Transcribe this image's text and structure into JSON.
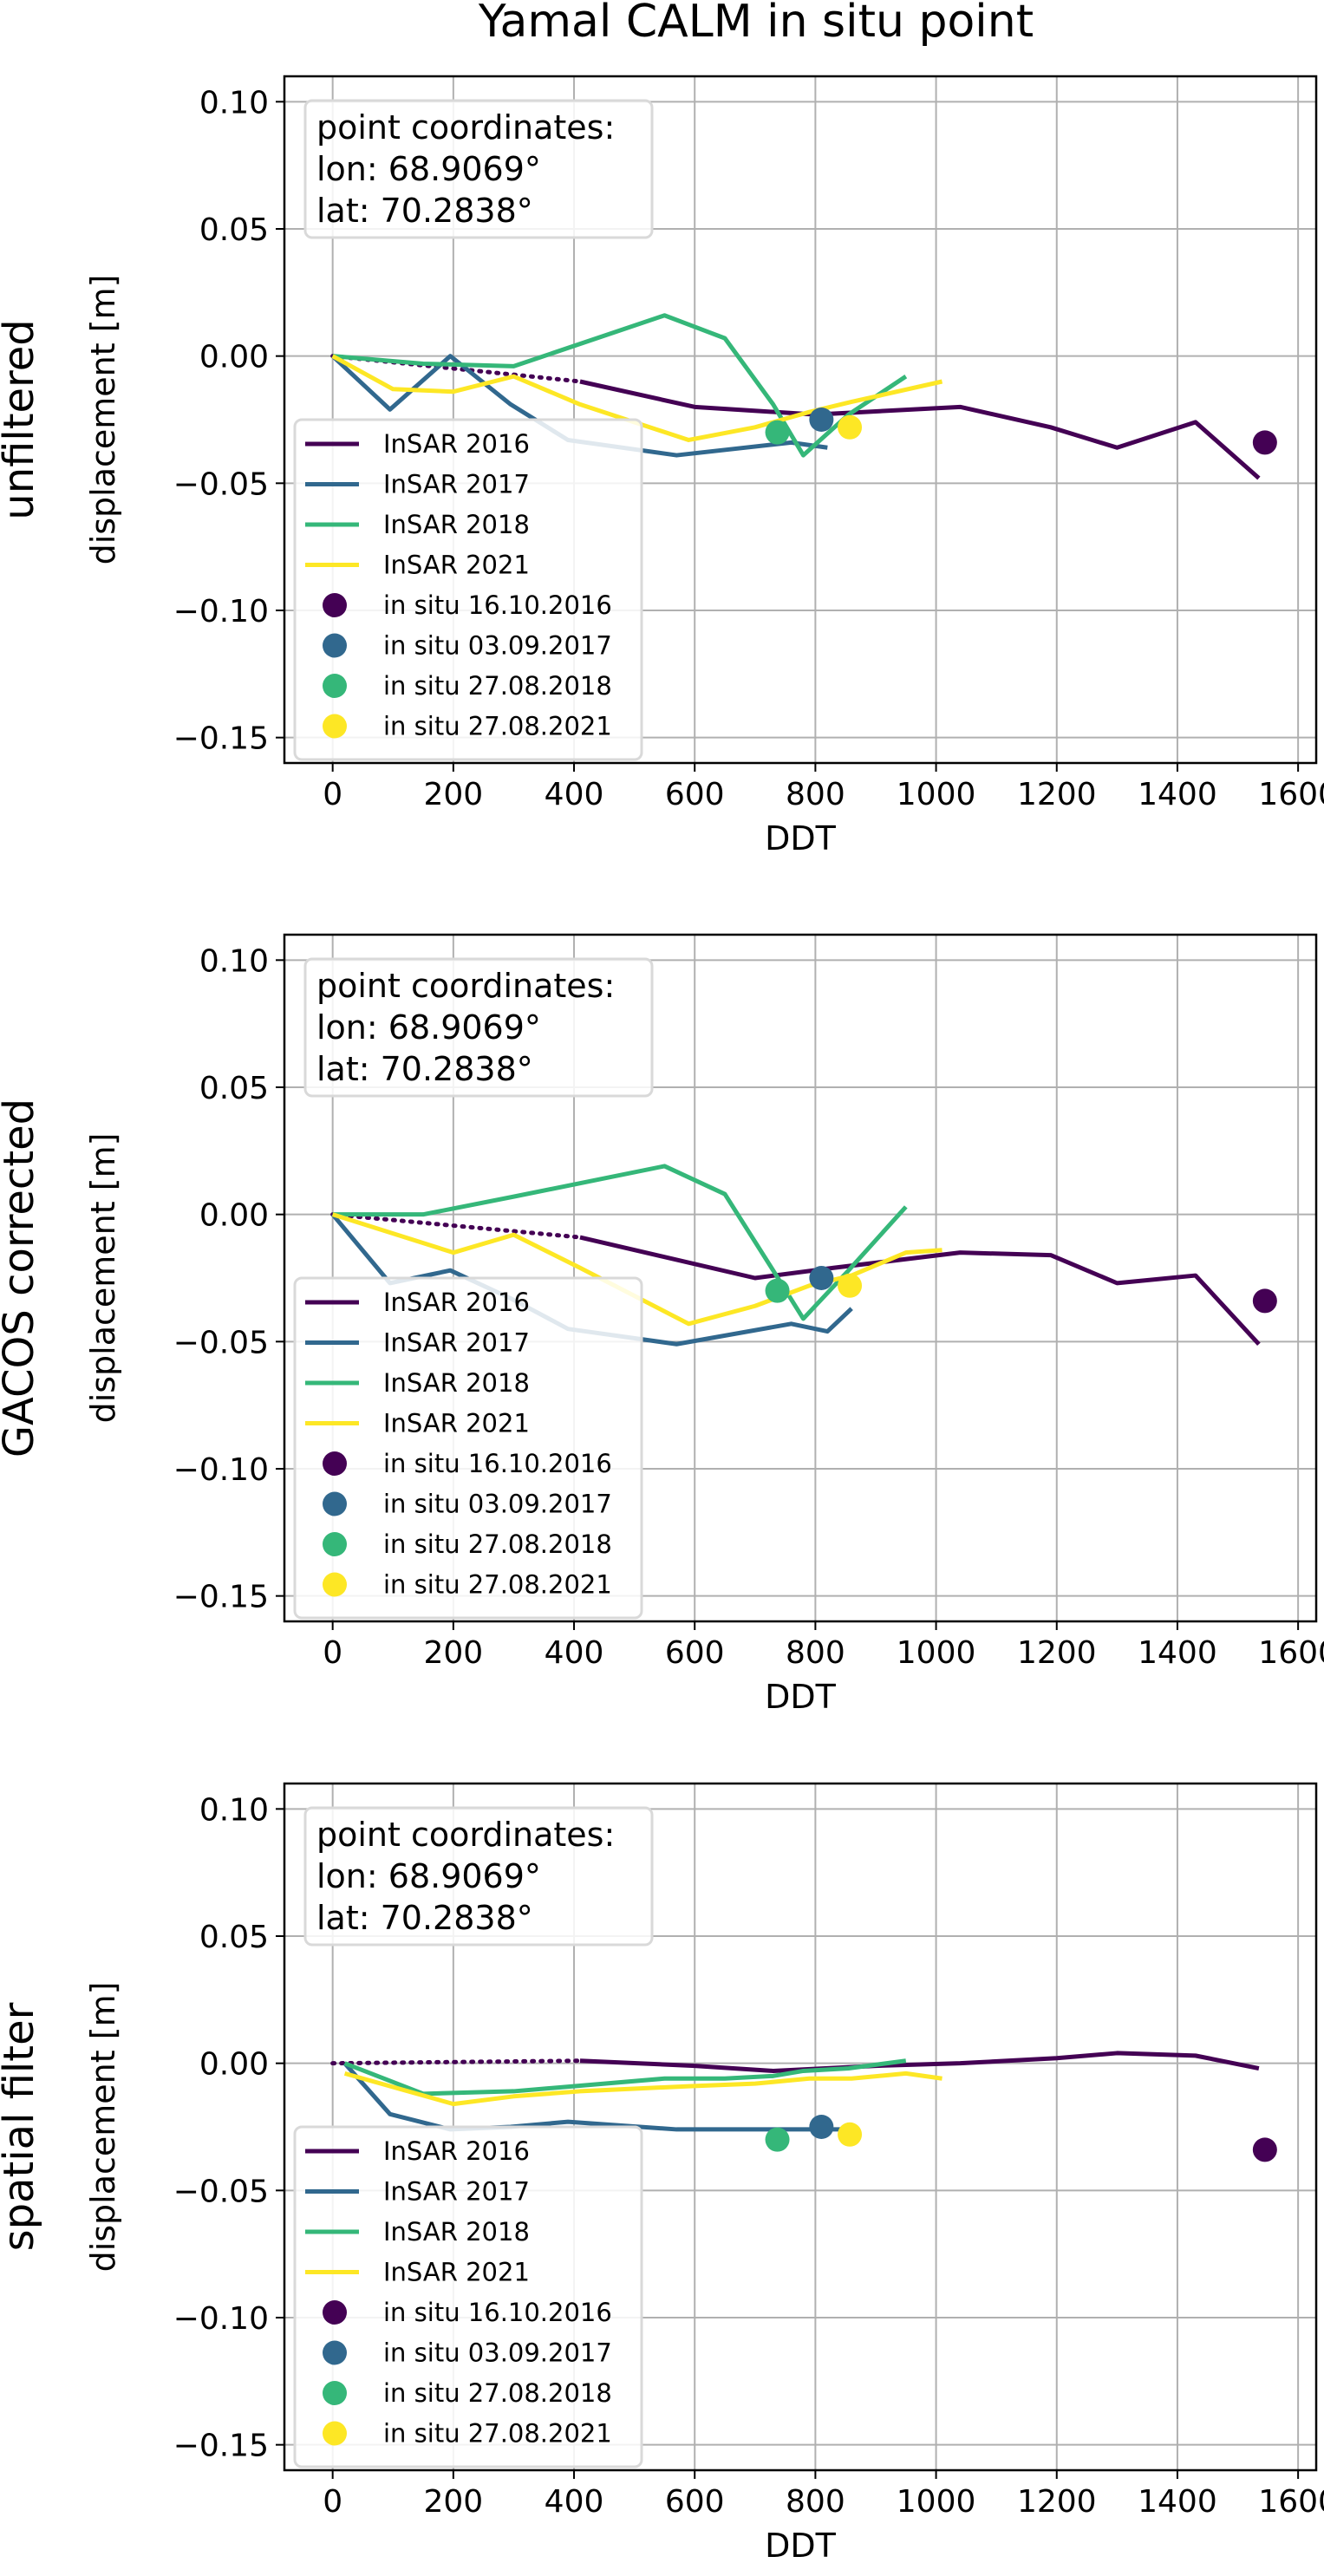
{
  "figure": {
    "title": "Yamal CALM in situ point",
    "colors": {
      "insar_2016": "#440154",
      "insar_2017": "#31688e",
      "insar_2018": "#35b779",
      "insar_2021": "#fde725",
      "grid": "#b0b0b0",
      "axes": "#000000",
      "legend_border": "#d9d9d9"
    }
  },
  "chart_data": [
    {
      "type": "line",
      "row_label": "unfiltered",
      "xlabel": "DDT",
      "ylabel": "displacement [m]",
      "xlim": [
        -80,
        1630
      ],
      "ylim": [
        -0.16,
        0.11
      ],
      "xticks": [
        0,
        200,
        400,
        600,
        800,
        1000,
        1200,
        1400,
        1600
      ],
      "yticks": [
        0.1,
        0.05,
        0.0,
        -0.05,
        -0.1,
        -0.15
      ],
      "grid": true,
      "info_box": [
        "point coordinates:",
        "lon: 68.9069°",
        "lat: 70.2838°"
      ],
      "legend_position": "lower-left",
      "series": [
        {
          "name": "InSAR 2016",
          "dotted_segment": {
            "x": [
              0,
              410
            ],
            "y": [
              0.0,
              -0.01
            ]
          },
          "x": [
            410,
            600,
            800,
            1040,
            1190,
            1300,
            1430,
            1535
          ],
          "y": [
            -0.01,
            -0.02,
            -0.023,
            -0.02,
            -0.028,
            -0.036,
            -0.026,
            -0.048
          ]
        },
        {
          "name": "InSAR 2017",
          "x": [
            0,
            95,
            195,
            295,
            390,
            570,
            760,
            820
          ],
          "y": [
            0.0,
            -0.021,
            0.0,
            -0.019,
            -0.033,
            -0.039,
            -0.034,
            -0.036
          ]
        },
        {
          "name": "InSAR 2018",
          "x": [
            0,
            150,
            300,
            550,
            650,
            730,
            780,
            855,
            950
          ],
          "y": [
            0.0,
            -0.003,
            -0.004,
            0.016,
            0.007,
            -0.019,
            -0.039,
            -0.023,
            -0.008
          ]
        },
        {
          "name": "InSAR 2021",
          "x": [
            0,
            100,
            200,
            300,
            410,
            590,
            700,
            790,
            860,
            1010
          ],
          "y": [
            0.0,
            -0.013,
            -0.014,
            -0.008,
            -0.019,
            -0.033,
            -0.028,
            -0.022,
            -0.018,
            -0.01
          ]
        }
      ],
      "in_situ": [
        {
          "name": "in situ 16.10.2016",
          "x": [
            1545
          ],
          "y": [
            -0.034
          ]
        },
        {
          "name": "in situ 03.09.2017",
          "x": [
            810
          ],
          "y": [
            -0.025
          ]
        },
        {
          "name": "in situ 27.08.2018",
          "x": [
            737
          ],
          "y": [
            -0.03
          ]
        },
        {
          "name": "in situ 27.08.2021",
          "x": [
            857
          ],
          "y": [
            -0.028
          ]
        }
      ]
    },
    {
      "type": "line",
      "row_label": "GACOS corrected",
      "xlabel": "DDT",
      "ylabel": "displacement [m]",
      "xlim": [
        -80,
        1630
      ],
      "ylim": [
        -0.16,
        0.11
      ],
      "xticks": [
        0,
        200,
        400,
        600,
        800,
        1000,
        1200,
        1400,
        1600
      ],
      "yticks": [
        0.1,
        0.05,
        0.0,
        -0.05,
        -0.1,
        -0.15
      ],
      "grid": true,
      "info_box": [
        "point coordinates:",
        "lon: 68.9069°",
        "lat: 70.2838°"
      ],
      "legend_position": "lower-left",
      "series": [
        {
          "name": "InSAR 2016",
          "dotted_segment": {
            "x": [
              0,
              410
            ],
            "y": [
              0.0,
              -0.009
            ]
          },
          "x": [
            410,
            700,
            830,
            1040,
            1190,
            1300,
            1430,
            1535
          ],
          "y": [
            -0.009,
            -0.025,
            -0.021,
            -0.015,
            -0.016,
            -0.027,
            -0.024,
            -0.051
          ]
        },
        {
          "name": "InSAR 2017",
          "x": [
            0,
            95,
            195,
            295,
            390,
            570,
            760,
            820,
            860
          ],
          "y": [
            0.0,
            -0.027,
            -0.022,
            -0.033,
            -0.045,
            -0.051,
            -0.043,
            -0.046,
            -0.037
          ]
        },
        {
          "name": "InSAR 2018",
          "x": [
            0,
            150,
            300,
            550,
            650,
            730,
            780,
            855,
            950
          ],
          "y": [
            0.0,
            0.0,
            0.007,
            0.019,
            0.008,
            -0.022,
            -0.041,
            -0.022,
            0.003
          ]
        },
        {
          "name": "InSAR 2021",
          "x": [
            0,
            200,
            300,
            410,
            590,
            700,
            790,
            860,
            950,
            1010
          ],
          "y": [
            0.0,
            -0.015,
            -0.008,
            -0.021,
            -0.043,
            -0.036,
            -0.028,
            -0.024,
            -0.015,
            -0.014
          ]
        }
      ],
      "in_situ": [
        {
          "name": "in situ 16.10.2016",
          "x": [
            1545
          ],
          "y": [
            -0.034
          ]
        },
        {
          "name": "in situ 03.09.2017",
          "x": [
            810
          ],
          "y": [
            -0.025
          ]
        },
        {
          "name": "in situ 27.08.2018",
          "x": [
            737
          ],
          "y": [
            -0.03
          ]
        },
        {
          "name": "in situ 27.08.2021",
          "x": [
            857
          ],
          "y": [
            -0.028
          ]
        }
      ]
    },
    {
      "type": "line",
      "row_label": "spatial filter",
      "xlabel": "DDT",
      "ylabel": "displacement [m]",
      "xlim": [
        -80,
        1630
      ],
      "ylim": [
        -0.16,
        0.11
      ],
      "xticks": [
        0,
        200,
        400,
        600,
        800,
        1000,
        1200,
        1400,
        1600
      ],
      "yticks": [
        0.1,
        0.05,
        0.0,
        -0.05,
        -0.1,
        -0.15
      ],
      "grid": true,
      "info_box": [
        "point coordinates:",
        "lon: 68.9069°",
        "lat: 70.2838°"
      ],
      "legend_position": "lower-left",
      "series": [
        {
          "name": "InSAR 2016",
          "dotted_segment": {
            "x": [
              0,
              410
            ],
            "y": [
              0.0,
              0.001
            ]
          },
          "x": [
            410,
            600,
            730,
            900,
            1040,
            1200,
            1300,
            1430,
            1535
          ],
          "y": [
            0.001,
            -0.001,
            -0.003,
            -0.001,
            0.0,
            0.002,
            0.004,
            0.003,
            -0.002
          ]
        },
        {
          "name": "InSAR 2017",
          "x": [
            20,
            95,
            195,
            295,
            390,
            570,
            760,
            820,
            860
          ],
          "y": [
            0.0,
            -0.02,
            -0.026,
            -0.025,
            -0.023,
            -0.026,
            -0.026,
            -0.026,
            -0.026
          ]
        },
        {
          "name": "InSAR 2018",
          "x": [
            20,
            150,
            300,
            550,
            650,
            730,
            780,
            855,
            950
          ],
          "y": [
            0.0,
            -0.012,
            -0.011,
            -0.006,
            -0.006,
            -0.005,
            -0.003,
            -0.002,
            0.001
          ]
        },
        {
          "name": "InSAR 2021",
          "x": [
            20,
            200,
            300,
            410,
            590,
            700,
            790,
            860,
            950,
            1010
          ],
          "y": [
            -0.004,
            -0.016,
            -0.013,
            -0.011,
            -0.009,
            -0.008,
            -0.006,
            -0.006,
            -0.004,
            -0.006
          ]
        }
      ],
      "in_situ": [
        {
          "name": "in situ 16.10.2016",
          "x": [
            1545
          ],
          "y": [
            -0.034
          ]
        },
        {
          "name": "in situ 03.09.2017",
          "x": [
            810
          ],
          "y": [
            -0.025
          ]
        },
        {
          "name": "in situ 27.08.2018",
          "x": [
            737
          ],
          "y": [
            -0.03
          ]
        },
        {
          "name": "in situ 27.08.2021",
          "x": [
            857
          ],
          "y": [
            -0.028
          ]
        }
      ]
    }
  ]
}
